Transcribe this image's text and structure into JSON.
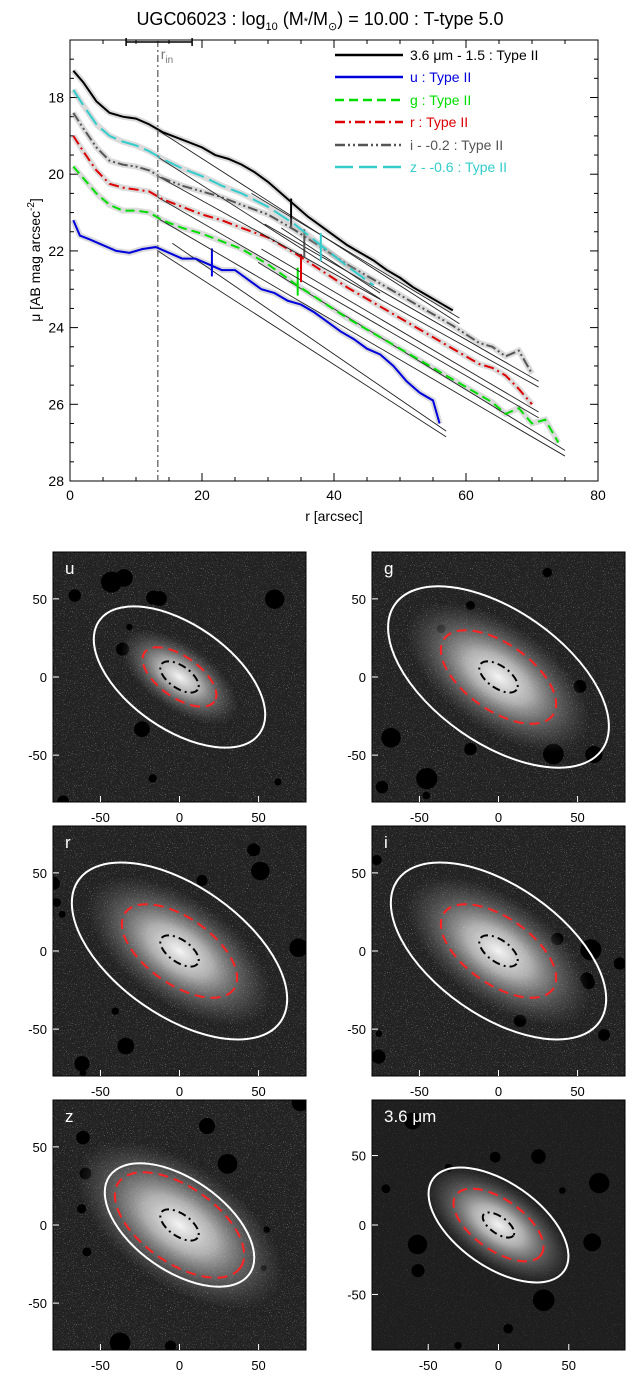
{
  "title": {
    "prefix": "UGC06023 : log",
    "sub": "10",
    "mid": " (M",
    "star": "*",
    "slash": "/M",
    "sun": "⊙",
    "suffix": ") = 10.00 : T-type 5.0"
  },
  "chart_data": [
    {
      "type": "line",
      "xlabel": "r [arcsec]",
      "ylabel": "μ [AB mag arcsec",
      "ylabel_sup": "-2",
      "ylabel_close": "]",
      "xlim": [
        0,
        80
      ],
      "ylim": [
        28,
        16.5
      ],
      "y_inverted": true,
      "xticks": [
        0,
        20,
        40,
        60,
        80
      ],
      "yticks": [
        18,
        20,
        22,
        24,
        26,
        28
      ],
      "grid": false,
      "legend_position": "top-right",
      "rin": {
        "label": "r",
        "label_sub": "in",
        "x": 13.3,
        "bar_x": [
          8.5,
          18.5
        ]
      },
      "series": [
        {
          "name": "3.6 μm - 1.5 : Type II",
          "color": "#000000",
          "dash": "solid",
          "x": [
            0.5,
            2,
            4,
            6,
            8,
            10,
            12,
            14,
            17,
            20,
            22,
            24,
            26,
            28,
            30,
            32,
            34,
            36,
            38,
            40,
            42,
            44,
            46,
            48,
            50,
            52,
            54,
            56,
            58
          ],
          "y": [
            17.3,
            17.6,
            18.1,
            18.4,
            18.5,
            18.55,
            18.7,
            18.9,
            19.1,
            19.3,
            19.5,
            19.6,
            19.75,
            19.95,
            20.2,
            20.5,
            20.8,
            21.1,
            21.35,
            21.6,
            21.85,
            22.05,
            22.25,
            22.5,
            22.7,
            22.95,
            23.15,
            23.35,
            23.55
          ],
          "break_x": 33.5,
          "break_y": 21.0
        },
        {
          "name": "u : Type II",
          "color": "#0000dd",
          "dash": "solid",
          "x": [
            0.5,
            1.5,
            3,
            5,
            7,
            9,
            11,
            13,
            15,
            17,
            19,
            21,
            23,
            25,
            27,
            29,
            31,
            33,
            35,
            37,
            39,
            41,
            43,
            45,
            47,
            49,
            51,
            53,
            55,
            56
          ],
          "y": [
            21.2,
            21.6,
            21.7,
            21.85,
            22.0,
            22.05,
            21.95,
            21.9,
            22.05,
            22.2,
            22.2,
            22.35,
            22.5,
            22.5,
            22.75,
            23.0,
            23.1,
            23.3,
            23.4,
            23.6,
            23.85,
            24.1,
            24.3,
            24.55,
            24.7,
            25.0,
            25.4,
            25.7,
            25.9,
            26.5
          ],
          "break_x": 21.5,
          "break_y": 22.3
        },
        {
          "name": "g : Type II",
          "color": "#00dd00",
          "dash": "dashed",
          "x": [
            0.5,
            2,
            4,
            6,
            8,
            10,
            12,
            14,
            17,
            20,
            23,
            26,
            30,
            34,
            38,
            42,
            46,
            50,
            54,
            58,
            62,
            64,
            66,
            68,
            70,
            72,
            74
          ],
          "y": [
            19.8,
            20.1,
            20.5,
            20.8,
            20.95,
            20.95,
            21.0,
            21.2,
            21.4,
            21.55,
            21.75,
            21.95,
            22.35,
            22.85,
            23.3,
            23.75,
            24.15,
            24.55,
            24.95,
            25.35,
            25.75,
            25.95,
            26.25,
            26.1,
            26.5,
            26.4,
            27.0
          ],
          "break_x": 34.5,
          "break_y": 22.8
        },
        {
          "name": "r : Type II",
          "color": "#dd0000",
          "dash": "dashdot",
          "x": [
            0.5,
            2,
            4,
            6,
            8,
            10,
            12,
            14,
            17,
            20,
            23,
            26,
            30,
            34,
            38,
            42,
            46,
            50,
            54,
            58,
            62,
            64,
            66,
            68,
            70
          ],
          "y": [
            19.0,
            19.4,
            19.9,
            20.25,
            20.35,
            20.4,
            20.45,
            20.65,
            20.85,
            21.05,
            21.2,
            21.4,
            21.65,
            22.05,
            22.5,
            22.95,
            23.35,
            23.75,
            24.15,
            24.55,
            24.95,
            25.05,
            25.25,
            25.6,
            26.0
          ],
          "break_x": 35.0,
          "break_y": 22.45
        },
        {
          "name": "i - -0.2 : Type II",
          "color": "#555555",
          "dash": "dashdotdot",
          "x": [
            0.5,
            2,
            4,
            6,
            8,
            10,
            12,
            14,
            17,
            20,
            23,
            26,
            30,
            34,
            38,
            42,
            46,
            50,
            54,
            58,
            62,
            64,
            66,
            68,
            70
          ],
          "y": [
            18.4,
            18.8,
            19.3,
            19.65,
            19.75,
            19.8,
            19.9,
            20.1,
            20.3,
            20.45,
            20.6,
            20.8,
            21.05,
            21.45,
            21.9,
            22.35,
            22.75,
            23.15,
            23.55,
            23.95,
            24.4,
            24.5,
            24.75,
            24.6,
            25.2
          ],
          "break_x": 35.5,
          "break_y": 21.8
        },
        {
          "name": "z - -0.6 : Type II",
          "color": "#33cccc",
          "dash": "longdash",
          "x": [
            0.5,
            2,
            4,
            6,
            8,
            10,
            12,
            14,
            17,
            20,
            23,
            26,
            30,
            34,
            38,
            42,
            46
          ],
          "y": [
            17.8,
            18.2,
            18.7,
            19.0,
            19.15,
            19.25,
            19.4,
            19.6,
            19.85,
            20.05,
            20.3,
            20.5,
            20.85,
            21.3,
            21.85,
            22.4,
            22.9
          ],
          "break_x": 38.0,
          "break_y": 21.9
        }
      ]
    },
    {
      "type": "heatmap",
      "panels": [
        {
          "label": "u",
          "xticks": [
            -50,
            0,
            50
          ],
          "yticks": [
            50,
            0,
            -50
          ],
          "xlim": [
            -80,
            80
          ],
          "ylim": [
            -80,
            80
          ],
          "ellipses": [
            {
              "color": "#ffffff",
              "style": "solid",
              "a": 62,
              "b": 33,
              "pa_deg": -35
            },
            {
              "color": "#ff2222",
              "style": "dashed",
              "a": 27,
              "b": 13,
              "pa_deg": -35
            },
            {
              "color": "#000000",
              "style": "dashdot",
              "a": 14,
              "b": 7,
              "pa_deg": -35
            }
          ]
        },
        {
          "label": "g",
          "xticks": [
            -50,
            0,
            50
          ],
          "yticks": [
            50,
            0,
            -50
          ],
          "xlim": [
            -80,
            80
          ],
          "ylim": [
            -80,
            80
          ],
          "ellipses": [
            {
              "color": "#ffffff",
              "style": "solid",
              "a": 80,
              "b": 42,
              "pa_deg": -35
            },
            {
              "color": "#ff2222",
              "style": "dashed",
              "a": 42,
              "b": 21,
              "pa_deg": -35
            },
            {
              "color": "#000000",
              "style": "dashdot",
              "a": 14,
              "b": 7,
              "pa_deg": -35
            }
          ]
        },
        {
          "label": "r",
          "xticks": [
            -50,
            0,
            50
          ],
          "yticks": [
            50,
            0,
            -50
          ],
          "xlim": [
            -80,
            80
          ],
          "ylim": [
            -80,
            80
          ],
          "ellipses": [
            {
              "color": "#ffffff",
              "style": "solid",
              "a": 78,
              "b": 41,
              "pa_deg": -35
            },
            {
              "color": "#ff2222",
              "style": "dashed",
              "a": 42,
              "b": 21,
              "pa_deg": -35
            },
            {
              "color": "#000000",
              "style": "dashdot",
              "a": 14,
              "b": 7,
              "pa_deg": -35
            }
          ]
        },
        {
          "label": "i",
          "xticks": [
            -50,
            0,
            50
          ],
          "yticks": [
            50,
            0,
            -50
          ],
          "xlim": [
            -80,
            80
          ],
          "ylim": [
            -80,
            80
          ],
          "ellipses": [
            {
              "color": "#ffffff",
              "style": "solid",
              "a": 78,
              "b": 41,
              "pa_deg": -35
            },
            {
              "color": "#ff2222",
              "style": "dashed",
              "a": 42,
              "b": 21,
              "pa_deg": -35
            },
            {
              "color": "#000000",
              "style": "dashdot",
              "a": 14,
              "b": 7,
              "pa_deg": -35
            }
          ]
        },
        {
          "label": "z",
          "xticks": [
            -50,
            0,
            50
          ],
          "yticks": [
            50,
            0,
            -50
          ],
          "xlim": [
            -80,
            80
          ],
          "ylim": [
            -80,
            80
          ],
          "ellipses": [
            {
              "color": "#ffffff",
              "style": "solid",
              "a": 54,
              "b": 29,
              "pa_deg": -35
            },
            {
              "color": "#ff2222",
              "style": "dashed",
              "a": 47,
              "b": 24,
              "pa_deg": -35
            },
            {
              "color": "#000000",
              "style": "dashdot",
              "a": 14,
              "b": 7,
              "pa_deg": -35
            }
          ]
        },
        {
          "label": "3.6 μm",
          "xticks": [
            -50,
            0,
            50
          ],
          "yticks": [
            50,
            0,
            -50
          ],
          "xlim": [
            -90,
            90
          ],
          "ylim": [
            -90,
            90
          ],
          "ellipses": [
            {
              "color": "#ffffff",
              "style": "solid",
              "a": 57,
              "b": 30,
              "pa_deg": -35
            },
            {
              "color": "#ff2222",
              "style": "dashed",
              "a": 37,
              "b": 18,
              "pa_deg": -35
            },
            {
              "color": "#000000",
              "style": "dashdot",
              "a": 13,
              "b": 6,
              "pa_deg": -35
            }
          ]
        }
      ]
    }
  ]
}
